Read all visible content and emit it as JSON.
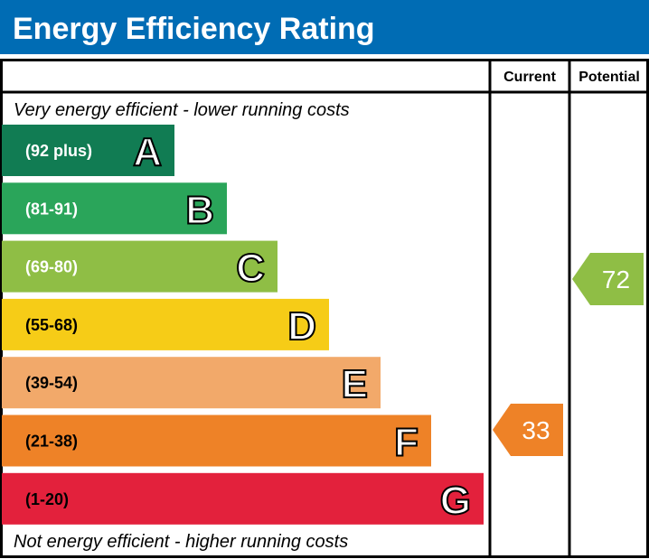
{
  "title": "Energy Efficiency Rating",
  "colors": {
    "header": "#006cb4",
    "border": "#000000"
  },
  "chart_data": {
    "type": "bar",
    "title": "Energy Efficiency Rating",
    "columns": [
      "Current",
      "Potential"
    ],
    "top_note": "Very energy efficient - lower running costs",
    "bottom_note": "Not energy efficient - higher running costs",
    "bands": [
      {
        "letter": "A",
        "range": "(92 plus)",
        "min": 92,
        "max": 100,
        "color": "#117c53"
      },
      {
        "letter": "B",
        "range": "(81-91)",
        "min": 81,
        "max": 91,
        "color": "#2aa55a"
      },
      {
        "letter": "C",
        "range": "(69-80)",
        "min": 69,
        "max": 80,
        "color": "#8fbe45"
      },
      {
        "letter": "D",
        "range": "(55-68)",
        "min": 55,
        "max": 68,
        "color": "#f6cc17"
      },
      {
        "letter": "E",
        "range": "(39-54)",
        "min": 39,
        "max": 54,
        "color": "#f2a96a"
      },
      {
        "letter": "F",
        "range": "(21-38)",
        "min": 21,
        "max": 38,
        "color": "#ee8227"
      },
      {
        "letter": "G",
        "range": "(1-20)",
        "min": 1,
        "max": 20,
        "color": "#e3213c"
      }
    ],
    "ratings": {
      "current": {
        "value": "33",
        "band": "F",
        "color": "#ee8227"
      },
      "potential": {
        "value": "72",
        "band": "C",
        "color": "#8fbe45"
      }
    }
  }
}
